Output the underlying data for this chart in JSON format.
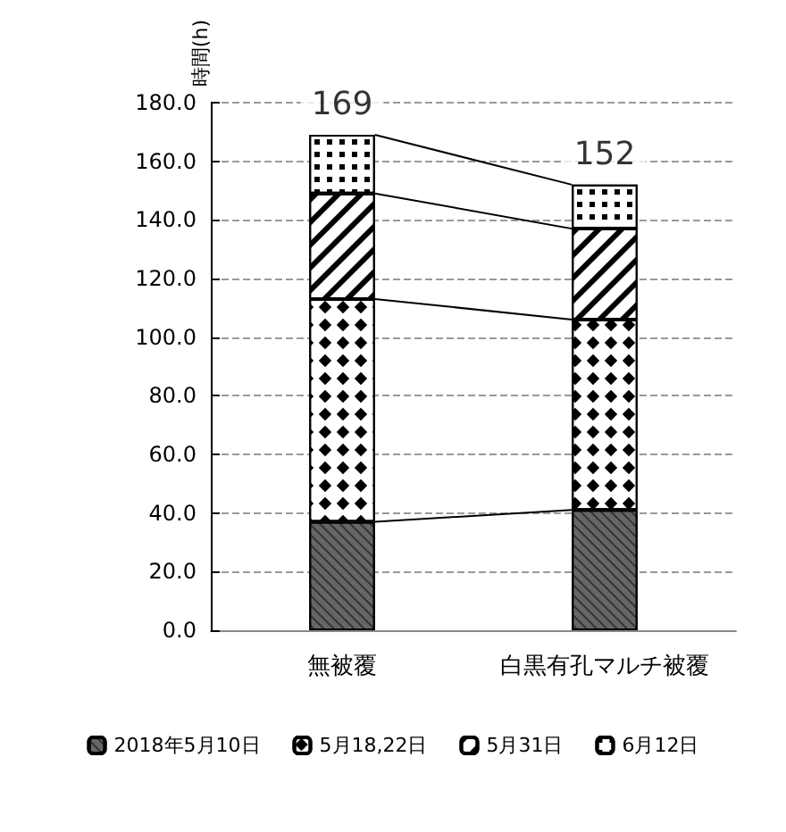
{
  "chart_data": {
    "type": "bar",
    "stacked": true,
    "ylabel": "時間(h)",
    "categories": [
      "無被覆",
      "白黒有孔マルチ被覆"
    ],
    "series": [
      {
        "name": "2018年5月10日",
        "color": "#666666",
        "values": [
          37,
          41
        ]
      },
      {
        "name": "5月18,22日",
        "color": "#ffffff",
        "values": [
          76,
          65
        ]
      },
      {
        "name": "5月31日",
        "color": "#ffffff",
        "values": [
          36,
          31
        ]
      },
      {
        "name": "6月12日",
        "color": "#ffffff",
        "values": [
          20,
          15
        ]
      }
    ],
    "totals": [
      "169",
      "152"
    ],
    "ylim": [
      0,
      180
    ],
    "yticks": [
      {
        "value": 0,
        "label": "0.0"
      },
      {
        "value": 20,
        "label": "20.0"
      },
      {
        "value": 40,
        "label": "40.0"
      },
      {
        "value": 60,
        "label": "60.0"
      },
      {
        "value": 80,
        "label": "80.0"
      },
      {
        "value": 100,
        "label": "100.0"
      },
      {
        "value": 120,
        "label": "120.0"
      },
      {
        "value": 140,
        "label": "140.0"
      },
      {
        "value": 160,
        "label": "160.0"
      },
      {
        "value": 180,
        "label": "180.0"
      }
    ],
    "grid": "y",
    "legend": "bottom"
  }
}
